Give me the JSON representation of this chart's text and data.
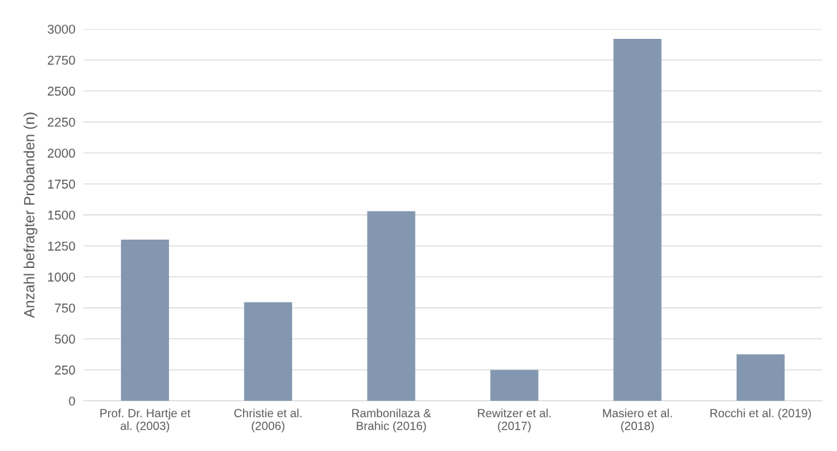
{
  "chart_data": {
    "type": "bar",
    "ylabel": "Anzahl befragter Probanden (n)",
    "categories": [
      "Prof. Dr. Hartje et\nal. (2003)",
      "Christie et al.\n(2006)",
      "Rambonilaza &\nBrahic (2016)",
      "Rewitzer et al.\n(2017)",
      "Masiero et al.\n(2018)",
      "Rocchi et al. (2019)"
    ],
    "values": [
      1300,
      795,
      1530,
      250,
      2920,
      375
    ],
    "color": "#8497b0",
    "ylim": [
      0,
      3000
    ],
    "yticks": [
      0,
      250,
      500,
      750,
      1000,
      1250,
      1500,
      1750,
      2000,
      2250,
      2500,
      2750,
      3000
    ],
    "grid": "y"
  }
}
